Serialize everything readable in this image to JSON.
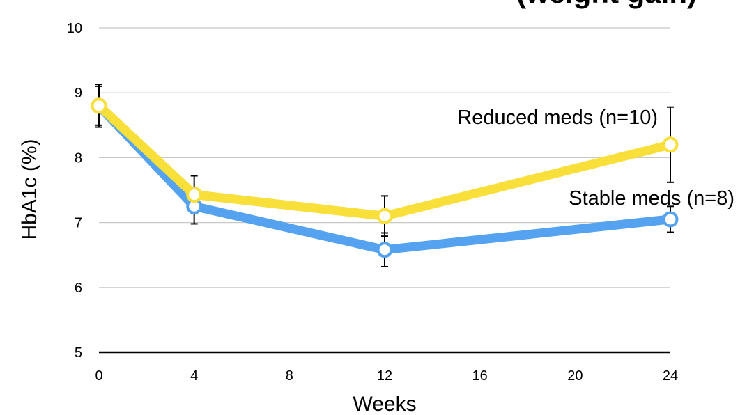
{
  "chart_data": {
    "type": "line",
    "title": "(weight gain)",
    "xlabel": "Weeks",
    "ylabel": "HbA1c (%)",
    "xlim": [
      0,
      24
    ],
    "ylim": [
      5,
      10
    ],
    "x_ticks": [
      "0",
      "4",
      "8",
      "12",
      "16",
      "20",
      "24"
    ],
    "y_ticks": [
      "5",
      "6",
      "7",
      "8",
      "9",
      "10"
    ],
    "grid": true,
    "series": [
      {
        "name": "Stable meds (n=8)",
        "color": "#55a3f0",
        "x": [
          0,
          4,
          12,
          24
        ],
        "y": [
          8.8,
          7.25,
          6.58,
          7.05
        ],
        "error": [
          0.3,
          0.27,
          0.26,
          0.2
        ]
      },
      {
        "name": "Reduced meds (n=10)",
        "color": "#f8df3a",
        "x": [
          0,
          4,
          12,
          24
        ],
        "y": [
          8.8,
          7.43,
          7.1,
          8.2
        ],
        "error": [
          0.33,
          0.29,
          0.31,
          0.58
        ]
      }
    ]
  }
}
